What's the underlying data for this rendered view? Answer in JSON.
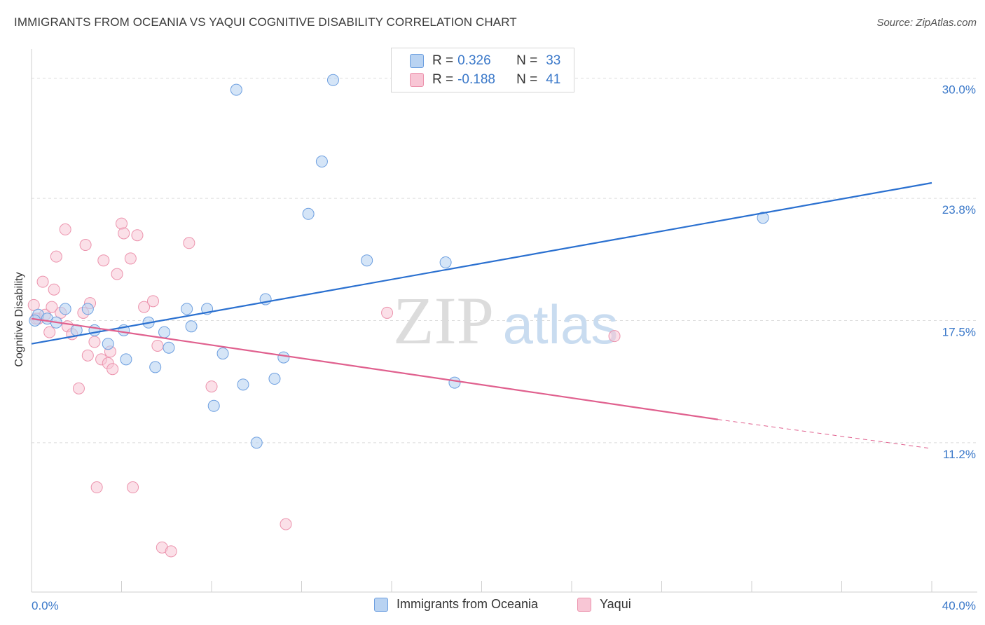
{
  "header": {
    "title": "IMMIGRANTS FROM OCEANIA VS YAQUI COGNITIVE DISABILITY CORRELATION CHART",
    "source": "Source: ZipAtlas.com"
  },
  "watermark": {
    "zip": "ZIP",
    "atlas": "atlas"
  },
  "legend": {
    "rows": [
      {
        "r_label": "R =",
        "r_value": "0.326",
        "n_label": "N =",
        "n_value": "33"
      },
      {
        "r_label": "R =",
        "r_value": "-0.188",
        "n_label": "N =",
        "n_value": "41"
      }
    ]
  },
  "bottom_legend": {
    "series1": "Immigrants from Oceania",
    "series2": "Yaqui"
  },
  "chart_data": {
    "type": "scatter",
    "title": "IMMIGRANTS FROM OCEANIA VS YAQUI COGNITIVE DISABILITY CORRELATION CHART",
    "xlabel": "",
    "ylabel": "Cognitive Disability",
    "xlim": [
      0,
      40
    ],
    "ylim": [
      3.5,
      31.5
    ],
    "x_tick_labels": [
      "0.0%",
      "40.0%"
    ],
    "y_ticks": [
      11.2,
      17.5,
      23.8,
      30.0
    ],
    "y_tick_labels": [
      "11.2%",
      "17.5%",
      "23.8%",
      "30.0%"
    ],
    "grid": true,
    "legend_position": "top-center",
    "colors": {
      "series1_fill": "#b9d3f2",
      "series1_stroke": "#6d9fe0",
      "series1_line": "#2a70d0",
      "series2_fill": "#f8c6d5",
      "series2_stroke": "#ec93ad",
      "series2_line": "#e0608e",
      "tick_label": "#3a78c9"
    },
    "series": [
      {
        "name": "Immigrants from Oceania",
        "points": [
          [
            0.3,
            17.8
          ],
          [
            0.7,
            17.6
          ],
          [
            1.1,
            17.4
          ],
          [
            1.5,
            18.1
          ],
          [
            2.0,
            17.0
          ],
          [
            2.5,
            18.1
          ],
          [
            2.8,
            17.0
          ],
          [
            3.4,
            16.3
          ],
          [
            4.1,
            17.0
          ],
          [
            4.2,
            15.5
          ],
          [
            5.2,
            17.4
          ],
          [
            5.5,
            15.1
          ],
          [
            5.9,
            16.9
          ],
          [
            6.1,
            16.1
          ],
          [
            6.9,
            18.1
          ],
          [
            7.1,
            17.2
          ],
          [
            7.8,
            18.1
          ],
          [
            8.1,
            13.1
          ],
          [
            8.5,
            15.8
          ],
          [
            9.1,
            29.4
          ],
          [
            9.4,
            14.2
          ],
          [
            10.0,
            11.2
          ],
          [
            10.4,
            18.6
          ],
          [
            10.8,
            14.5
          ],
          [
            11.2,
            15.6
          ],
          [
            12.3,
            23.0
          ],
          [
            12.9,
            25.7
          ],
          [
            13.4,
            29.9
          ],
          [
            14.9,
            20.6
          ],
          [
            18.4,
            20.5
          ],
          [
            18.8,
            14.3
          ],
          [
            32.5,
            22.8
          ],
          [
            0.15,
            17.5
          ]
        ],
        "trend": {
          "x0": 0,
          "y0": 16.3,
          "x1": 40,
          "y1": 24.6
        }
      },
      {
        "name": "Yaqui",
        "points": [
          [
            0.1,
            18.3
          ],
          [
            0.3,
            17.6
          ],
          [
            0.5,
            19.5
          ],
          [
            0.6,
            17.8
          ],
          [
            0.8,
            16.9
          ],
          [
            0.9,
            18.2
          ],
          [
            1.0,
            19.1
          ],
          [
            1.1,
            20.8
          ],
          [
            1.3,
            17.9
          ],
          [
            1.5,
            22.2
          ],
          [
            1.6,
            17.2
          ],
          [
            1.8,
            16.8
          ],
          [
            2.1,
            14.0
          ],
          [
            2.3,
            17.9
          ],
          [
            2.4,
            21.4
          ],
          [
            2.5,
            15.7
          ],
          [
            2.6,
            18.4
          ],
          [
            2.8,
            16.4
          ],
          [
            2.9,
            8.9
          ],
          [
            3.1,
            15.5
          ],
          [
            3.2,
            20.6
          ],
          [
            3.4,
            15.3
          ],
          [
            3.5,
            15.9
          ],
          [
            3.6,
            15.0
          ],
          [
            3.8,
            19.9
          ],
          [
            4.0,
            22.5
          ],
          [
            4.1,
            22.0
          ],
          [
            4.4,
            20.7
          ],
          [
            4.5,
            8.9
          ],
          [
            4.7,
            21.9
          ],
          [
            5.0,
            18.2
          ],
          [
            5.4,
            18.5
          ],
          [
            5.6,
            16.2
          ],
          [
            5.8,
            5.8
          ],
          [
            6.2,
            5.6
          ],
          [
            7.0,
            21.5
          ],
          [
            8.0,
            14.1
          ],
          [
            11.3,
            7.0
          ],
          [
            15.8,
            17.9
          ],
          [
            25.9,
            16.7
          ],
          [
            0.2,
            17.6
          ]
        ],
        "trend": {
          "x0": 0,
          "y0": 17.6,
          "x1": 30.5,
          "y1": 12.4
        },
        "trend_dashed": {
          "x0": 30.5,
          "y0": 12.4,
          "x1": 40,
          "y1": 10.9
        }
      }
    ]
  }
}
